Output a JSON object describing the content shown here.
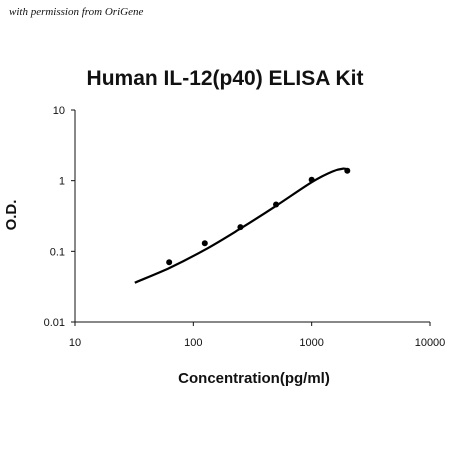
{
  "watermark": "with permission from OriGene",
  "chart_data": {
    "type": "scatter",
    "title": "Human IL-12(p40) ELISA Kit",
    "xlabel": "Concentration(pg/ml)",
    "ylabel": "O.D.",
    "xscale": "log",
    "yscale": "log",
    "xlim": [
      10,
      10000
    ],
    "ylim": [
      0.01,
      10
    ],
    "xticks": [
      {
        "value": 10,
        "label": "10"
      },
      {
        "value": 100,
        "label": "100"
      },
      {
        "value": 1000,
        "label": "1000"
      },
      {
        "value": 10000,
        "label": "10000"
      }
    ],
    "yticks": [
      {
        "value": 0.01,
        "label": "0.01"
      },
      {
        "value": 0.1,
        "label": "0.1"
      },
      {
        "value": 1,
        "label": "1"
      },
      {
        "value": 10,
        "label": "10"
      }
    ],
    "grid": false,
    "series": [
      {
        "points": [
          {
            "x": 62.5,
            "y": 0.07
          },
          {
            "x": 125,
            "y": 0.13
          },
          {
            "x": 250,
            "y": 0.22
          },
          {
            "x": 500,
            "y": 0.46
          },
          {
            "x": 1000,
            "y": 1.03
          },
          {
            "x": 2000,
            "y": 1.38
          }
        ]
      }
    ],
    "fit_curve": [
      {
        "x": 32,
        "y": 0.036
      },
      {
        "x": 62.5,
        "y": 0.058
      },
      {
        "x": 125,
        "y": 0.105
      },
      {
        "x": 250,
        "y": 0.21
      },
      {
        "x": 500,
        "y": 0.44
      },
      {
        "x": 1000,
        "y": 0.95
      },
      {
        "x": 1500,
        "y": 1.35
      },
      {
        "x": 1850,
        "y": 1.48
      },
      {
        "x": 2050,
        "y": 1.42
      }
    ]
  }
}
